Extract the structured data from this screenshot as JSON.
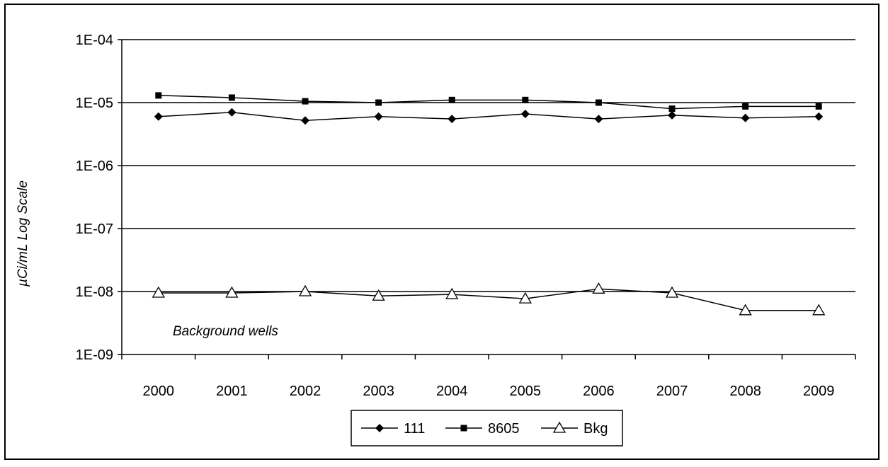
{
  "chart_data": {
    "type": "line",
    "ylabel": "µCi/mL    Log Scale",
    "yscale": "log",
    "ylim": [
      1e-09,
      0.0001
    ],
    "y_ticks": [
      {
        "value": 0.0001,
        "label": "1E-04"
      },
      {
        "value": 1e-05,
        "label": "1E-05"
      },
      {
        "value": 1e-06,
        "label": "1E-06"
      },
      {
        "value": 1e-07,
        "label": "1E-07"
      },
      {
        "value": 1e-08,
        "label": "1E-08"
      },
      {
        "value": 1e-09,
        "label": "1E-09"
      }
    ],
    "categories": [
      "2000",
      "2001",
      "2002",
      "2003",
      "2004",
      "2005",
      "2006",
      "2007",
      "2008",
      "2009"
    ],
    "series": [
      {
        "name": "111",
        "marker": "diamond",
        "values": [
          6e-06,
          7e-06,
          5.2e-06,
          6e-06,
          5.5e-06,
          6.6e-06,
          5.5e-06,
          6.3e-06,
          5.7e-06,
          6e-06
        ]
      },
      {
        "name": "8605",
        "marker": "square",
        "values": [
          1.3e-05,
          1.2e-05,
          1.05e-05,
          1e-05,
          1.1e-05,
          1.1e-05,
          1e-05,
          8e-06,
          8.7e-06,
          8.7e-06
        ]
      },
      {
        "name": "Bkg",
        "marker": "triangle",
        "values": [
          9.5e-09,
          9.5e-09,
          1e-08,
          8.5e-09,
          9e-09,
          7.7e-09,
          1.1e-08,
          9.5e-09,
          5e-09,
          5e-09
        ]
      }
    ],
    "annotation": "Background wells",
    "grid": "horizontal",
    "legend_position": "bottom"
  },
  "colors": {
    "line": "#000000",
    "grid": "#000000",
    "background": "#ffffff"
  }
}
